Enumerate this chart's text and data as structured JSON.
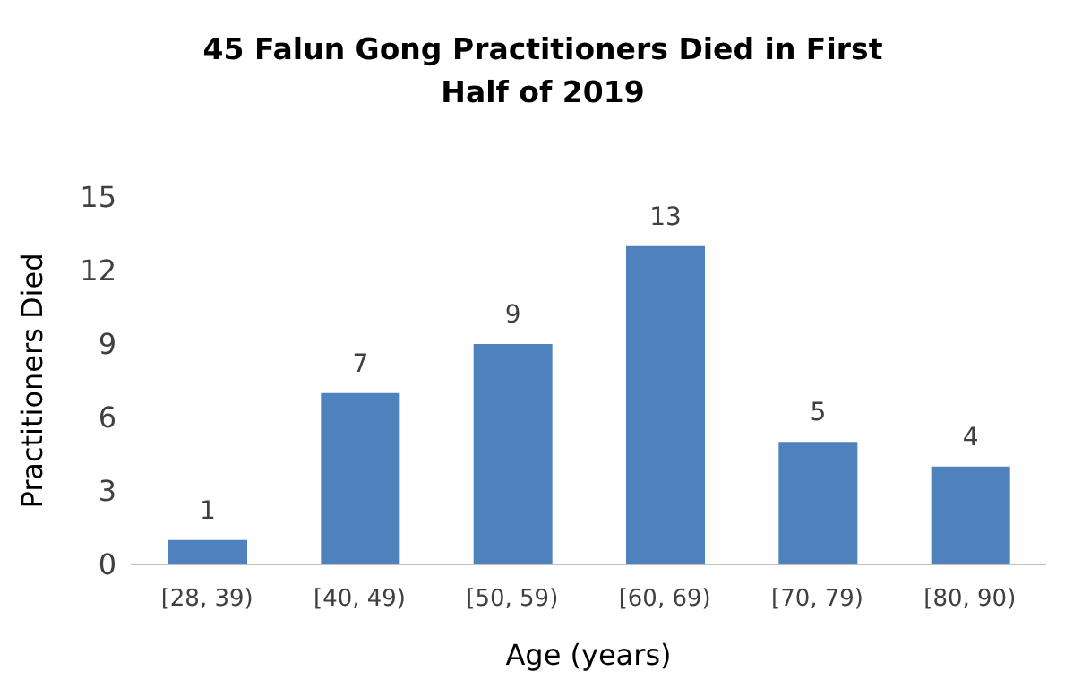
{
  "chart_data": {
    "type": "bar",
    "title": "45 Falun Gong Practitioners Died in First Half of 2019",
    "xlabel": "Age (years)",
    "ylabel": "Practitioners Died",
    "categories": [
      "[28, 39)",
      "[40, 49)",
      "[50, 59)",
      "[60, 69)",
      "[70, 79)",
      "[80, 90)"
    ],
    "values": [
      1,
      7,
      9,
      13,
      5,
      4
    ],
    "color": "#4f81bd",
    "ylim": [
      0,
      15
    ],
    "yticks": [
      0,
      3,
      6,
      9,
      12,
      15
    ],
    "data_labels": true,
    "grid": false
  }
}
